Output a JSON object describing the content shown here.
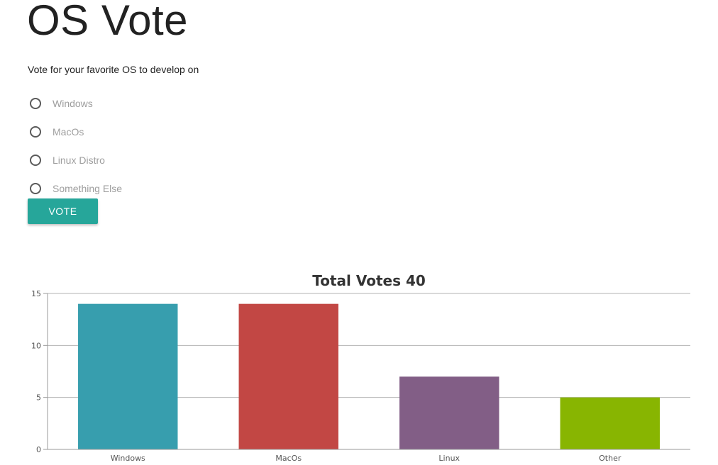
{
  "page": {
    "title": "OS Vote",
    "prompt": "Vote for your favorite OS to develop on"
  },
  "form": {
    "options": [
      {
        "label": "Windows",
        "selected": false
      },
      {
        "label": "MacOs",
        "selected": false
      },
      {
        "label": "Linux Distro",
        "selected": false
      },
      {
        "label": "Something Else",
        "selected": false
      }
    ],
    "submit_label": "VOTE"
  },
  "colors": {
    "accent": "#26a69a",
    "radio_border": "#5a5a5a",
    "option_text": "#9e9e9e"
  },
  "chart_data": {
    "type": "bar",
    "title": "Total Votes 40",
    "xlabel": "",
    "ylabel": "",
    "categories": [
      "Windows",
      "MacOs",
      "Linux",
      "Other"
    ],
    "values": [
      14,
      14,
      7,
      5
    ],
    "colors": [
      "#379eae",
      "#c24744",
      "#825e86",
      "#88b501"
    ],
    "ylim": [
      0,
      15
    ],
    "yticks": [
      0,
      5,
      10,
      15
    ],
    "grid": true,
    "legend": "none"
  }
}
